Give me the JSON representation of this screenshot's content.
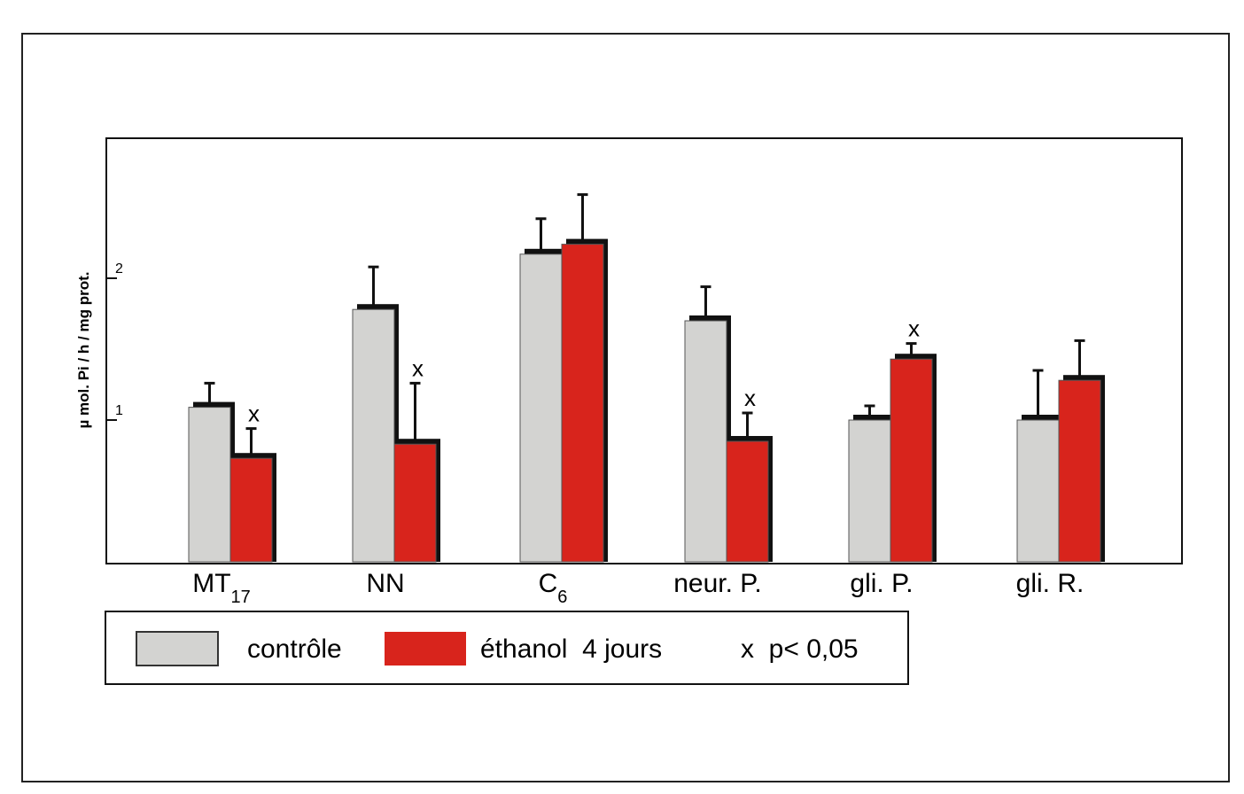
{
  "chart_data": {
    "type": "bar",
    "title": "",
    "xlabel": "",
    "ylabel": "µ mol. Pi / h / mg prot.",
    "ylim": [
      0,
      3
    ],
    "yticks": [
      "1",
      "2"
    ],
    "categories": [
      "MT",
      "NN",
      "C",
      "neur. P.",
      "gli. P.",
      "gli. R."
    ],
    "category_subscripts": [
      "17",
      "",
      "6",
      "",
      "",
      ""
    ],
    "series": [
      {
        "name": "contrôle",
        "color": "#d3d3d1",
        "values": [
          1.09,
          1.78,
          2.17,
          1.7,
          1.0,
          1.0
        ],
        "errors": [
          0.17,
          0.3,
          0.25,
          0.24,
          0.1,
          0.35
        ]
      },
      {
        "name": "éthanol  4 jours",
        "color": "#d8241c",
        "values": [
          0.73,
          0.83,
          2.24,
          0.85,
          1.43,
          1.28
        ],
        "errors": [
          0.21,
          0.43,
          0.35,
          0.2,
          0.11,
          0.28
        ]
      }
    ],
    "significance_marker": "x",
    "significant": [
      [
        false,
        true
      ],
      [
        false,
        true
      ],
      [
        false,
        false
      ],
      [
        false,
        true
      ],
      [
        false,
        true
      ],
      [
        false,
        false
      ]
    ],
    "legend": {
      "placement": "bottom-left",
      "items": [
        "contrôle",
        "éthanol  4 jours"
      ],
      "note": "x  p< 0,05"
    }
  }
}
